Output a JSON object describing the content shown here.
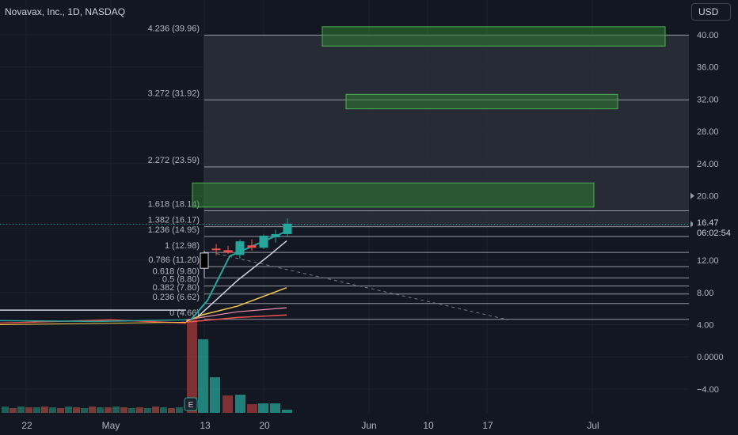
{
  "header": {
    "symbol_title": "Novavax, Inc., 1D, NASDAQ",
    "currency": "USD"
  },
  "price_badge": {
    "price": "16.47",
    "countdown": "06:02:54"
  },
  "colors": {
    "background": "#131722",
    "up": "#26a69a",
    "down": "#ef5350",
    "zone_fill": "#2e7d32",
    "zone_stroke": "#4caf50",
    "fib_band": "#2a2d39",
    "fib_line": "#9598a1"
  },
  "chart_data": {
    "type": "candlestick",
    "title": "Novavax, Inc., 1D, NASDAQ",
    "y_axis": {
      "ticks": [
        "40.00",
        "36.00",
        "32.00",
        "28.00",
        "24.00",
        "20.00",
        "16.00",
        "12.00",
        "8.00",
        "4.00",
        "0.0000",
        "−4.00"
      ],
      "tick_values": [
        40,
        36,
        32,
        28,
        24,
        20,
        16,
        12,
        8,
        4,
        0,
        -4
      ],
      "range": [
        -7,
        44
      ]
    },
    "x_axis": {
      "ticks": [
        "22",
        "May",
        "13",
        "20",
        "Jun",
        "10",
        "17",
        "Jul"
      ]
    },
    "fib_levels": [
      {
        "label": "4.236 (39.96)",
        "value": 39.96
      },
      {
        "label": "3.272 (31.92)",
        "value": 31.92
      },
      {
        "label": "2.272 (23.59)",
        "value": 23.59
      },
      {
        "label": "1.618 (18.14)",
        "value": 18.14
      },
      {
        "label": "1.382 (16.17)",
        "value": 16.17
      },
      {
        "label": "1.236 (14.95)",
        "value": 14.95
      },
      {
        "label": "1 (12.98)",
        "value": 12.98
      },
      {
        "label": "0.786 (11.20)",
        "value": 11.2
      },
      {
        "label": "0.618 (9.80)",
        "value": 9.8
      },
      {
        "label": "0.5 (8.80)",
        "value": 8.8
      },
      {
        "label": "0.382 (7.80)",
        "value": 7.8
      },
      {
        "label": "0.236 (6.62)",
        "value": 6.62
      },
      {
        "label": "0 (4.66)",
        "value": 4.66
      }
    ],
    "zones": [
      {
        "y_top": 41.0,
        "y_bottom": 38.6
      },
      {
        "y_top": 32.6,
        "y_bottom": 30.8
      },
      {
        "y_top": 21.6,
        "y_bottom": 18.6
      }
    ],
    "candles": [
      {
        "o": 11.0,
        "h": 13.2,
        "l": 9.8,
        "c": 12.9
      },
      {
        "o": 13.4,
        "h": 14.0,
        "l": 12.6,
        "c": 13.3
      },
      {
        "o": 13.2,
        "h": 13.8,
        "l": 12.8,
        "c": 13.0
      },
      {
        "o": 12.7,
        "h": 14.6,
        "l": 12.2,
        "c": 14.3
      },
      {
        "o": 13.8,
        "h": 14.6,
        "l": 13.2,
        "c": 13.6
      },
      {
        "o": 13.6,
        "h": 15.2,
        "l": 13.4,
        "c": 15.0
      },
      {
        "o": 14.9,
        "h": 15.8,
        "l": 14.2,
        "c": 15.2
      },
      {
        "o": 15.3,
        "h": 17.2,
        "l": 15.0,
        "c": 16.5
      }
    ],
    "last_price": 16.47,
    "earnings_marker": "E"
  }
}
